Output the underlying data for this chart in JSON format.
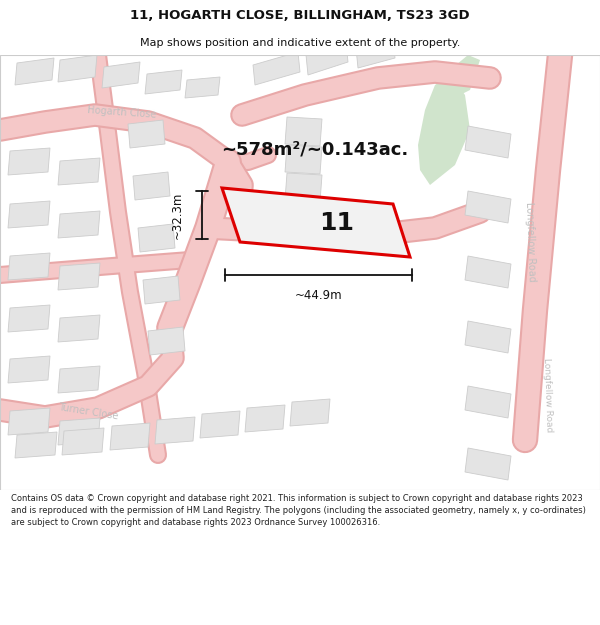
{
  "title_line1": "11, HOGARTH CLOSE, BILLINGHAM, TS23 3GD",
  "title_line2": "Map shows position and indicative extent of the property.",
  "footer_text": "Contains OS data © Crown copyright and database right 2021. This information is subject to Crown copyright and database rights 2023 and is reproduced with the permission of HM Land Registry. The polygons (including the associated geometry, namely x, y co-ordinates) are subject to Crown copyright and database rights 2023 Ordnance Survey 100026316.",
  "area_text": "~578m²/~0.143ac.",
  "plot_number": "11",
  "dim_width": "~44.9m",
  "dim_height": "~32.3m",
  "map_bg": "#f7f7f7",
  "road_color": "#f5c8c8",
  "road_outline": "#e8a8a8",
  "building_fill": "#e4e4e4",
  "building_stroke": "#cccccc",
  "plot_stroke": "#dd0000",
  "green_fill": "#d0e4cc",
  "label_color": "#c0c0c0",
  "title_fontsize": 9.5,
  "subtitle_fontsize": 8.0,
  "footer_fontsize": 6.0,
  "area_fontsize": 13,
  "dim_fontsize": 8.5,
  "plotnum_fontsize": 18,
  "street_fontsize": 7.0
}
